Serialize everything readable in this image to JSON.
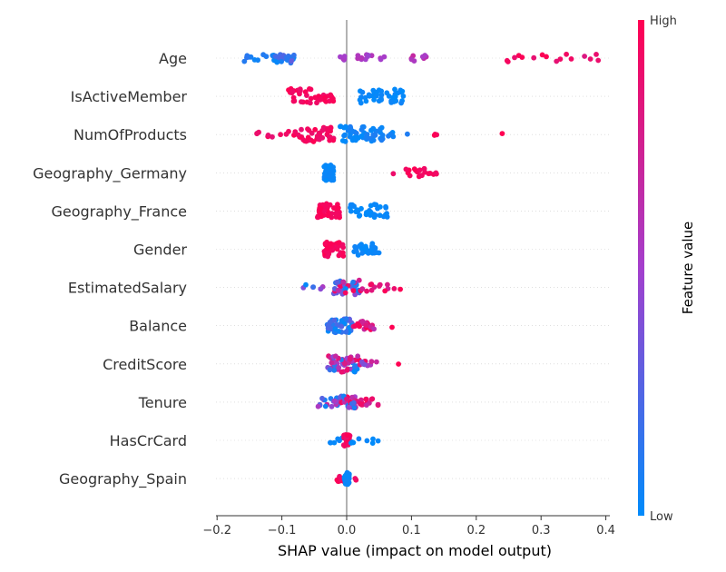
{
  "chart_data": {
    "type": "scatter",
    "subtype": "shap-beeswarm",
    "xlabel": "SHAP value (impact on model output)",
    "xlim": [
      -0.2,
      0.42
    ],
    "xticks": [
      "−0.2",
      "−0.1",
      "0.0",
      "0.1",
      "0.2",
      "0.3",
      "0.4"
    ],
    "xtick_values": [
      -0.2,
      -0.1,
      0.0,
      0.1,
      0.2,
      0.3,
      0.4
    ],
    "colorbar": {
      "label": "Feature value",
      "high": "High",
      "low": "Low",
      "low_color": "#008bfb",
      "mid_color": "#a43fcd",
      "high_color": "#ff0052"
    },
    "features": [
      {
        "name": "Age",
        "segments": [
          {
            "from": -0.17,
            "to": -0.1,
            "n": 18,
            "c": [
              0.0,
              0.15
            ]
          },
          {
            "from": -0.11,
            "to": -0.08,
            "n": 22,
            "c": [
              0.0,
              0.3
            ]
          },
          {
            "from": -0.01,
            "to": 0.0,
            "n": 5,
            "c": [
              0.45,
              0.55
            ]
          },
          {
            "from": 0.01,
            "to": 0.07,
            "n": 12,
            "c": [
              0.45,
              0.6
            ]
          },
          {
            "from": 0.09,
            "to": 0.13,
            "n": 8,
            "c": [
              0.5,
              0.7
            ]
          },
          {
            "from": 0.19,
            "to": 0.39,
            "n": 16,
            "c": [
              0.8,
              1.0
            ]
          }
        ]
      },
      {
        "name": "IsActiveMember",
        "segments": [
          {
            "from": -0.09,
            "to": -0.02,
            "n": 45,
            "c": [
              0.9,
              1.0
            ]
          },
          {
            "from": 0.02,
            "to": 0.09,
            "n": 40,
            "c": [
              0.0,
              0.05
            ]
          }
        ]
      },
      {
        "name": "NumOfProducts",
        "segments": [
          {
            "from": -0.14,
            "to": -0.08,
            "n": 10,
            "c": [
              0.85,
              1.0
            ]
          },
          {
            "from": -0.08,
            "to": -0.02,
            "n": 40,
            "c": [
              0.85,
              1.0
            ]
          },
          {
            "from": -0.01,
            "to": 0.06,
            "n": 50,
            "c": [
              0.0,
              0.1
            ]
          },
          {
            "from": 0.06,
            "to": 0.1,
            "n": 5,
            "c": [
              0.0,
              0.1
            ]
          },
          {
            "from": 0.135,
            "to": 0.145,
            "n": 3,
            "c": [
              0.9,
              1.0
            ]
          },
          {
            "from": 0.24,
            "to": 0.24,
            "n": 1,
            "c": [
              1.0,
              1.0
            ]
          }
        ]
      },
      {
        "name": "Geography_Germany",
        "segments": [
          {
            "from": -0.035,
            "to": -0.02,
            "n": 45,
            "c": [
              0.0,
              0.05
            ]
          },
          {
            "from": 0.07,
            "to": 0.145,
            "n": 20,
            "c": [
              0.9,
              1.0
            ]
          }
        ]
      },
      {
        "name": "Geography_France",
        "segments": [
          {
            "from": -0.045,
            "to": -0.01,
            "n": 40,
            "c": [
              0.9,
              1.0
            ]
          },
          {
            "from": 0.005,
            "to": 0.065,
            "n": 35,
            "c": [
              0.0,
              0.05
            ]
          }
        ]
      },
      {
        "name": "Gender",
        "segments": [
          {
            "from": -0.035,
            "to": -0.005,
            "n": 40,
            "c": [
              0.9,
              1.0
            ]
          },
          {
            "from": 0.01,
            "to": 0.05,
            "n": 30,
            "c": [
              0.0,
              0.05
            ]
          }
        ]
      },
      {
        "name": "EstimatedSalary",
        "segments": [
          {
            "from": -0.08,
            "to": -0.03,
            "n": 6,
            "c": [
              0.0,
              0.6
            ]
          },
          {
            "from": -0.02,
            "to": 0.02,
            "n": 40,
            "c": [
              0.0,
              1.0
            ]
          },
          {
            "from": 0.02,
            "to": 0.085,
            "n": 14,
            "c": [
              0.7,
              1.0
            ]
          }
        ]
      },
      {
        "name": "Balance",
        "segments": [
          {
            "from": -0.03,
            "to": 0.01,
            "n": 40,
            "c": [
              0.0,
              0.3
            ]
          },
          {
            "from": 0.01,
            "to": 0.045,
            "n": 20,
            "c": [
              0.6,
              1.0
            ]
          },
          {
            "from": 0.07,
            "to": 0.07,
            "n": 1,
            "c": [
              1.0,
              1.0
            ]
          }
        ]
      },
      {
        "name": "CreditScore",
        "segments": [
          {
            "from": -0.03,
            "to": 0.02,
            "n": 55,
            "c": [
              0.0,
              1.0
            ]
          },
          {
            "from": 0.02,
            "to": 0.05,
            "n": 10,
            "c": [
              0.3,
              1.0
            ]
          },
          {
            "from": 0.08,
            "to": 0.08,
            "n": 1,
            "c": [
              1.0,
              1.0
            ]
          }
        ]
      },
      {
        "name": "Tenure",
        "segments": [
          {
            "from": -0.045,
            "to": -0.005,
            "n": 20,
            "c": [
              0.0,
              0.7
            ]
          },
          {
            "from": -0.01,
            "to": 0.02,
            "n": 30,
            "c": [
              0.0,
              1.0
            ]
          },
          {
            "from": 0.02,
            "to": 0.05,
            "n": 14,
            "c": [
              0.6,
              1.0
            ]
          }
        ]
      },
      {
        "name": "HasCrCard",
        "segments": [
          {
            "from": -0.03,
            "to": -0.005,
            "n": 6,
            "c": [
              0.0,
              0.05
            ]
          },
          {
            "from": -0.005,
            "to": 0.005,
            "n": 30,
            "c": [
              0.85,
              1.0
            ]
          },
          {
            "from": 0.005,
            "to": 0.05,
            "n": 8,
            "c": [
              0.0,
              0.05
            ]
          }
        ]
      },
      {
        "name": "Geography_Spain",
        "segments": [
          {
            "from": -0.015,
            "to": -0.003,
            "n": 8,
            "c": [
              0.9,
              1.0
            ]
          },
          {
            "from": -0.004,
            "to": 0.004,
            "n": 30,
            "c": [
              0.0,
              0.05
            ]
          },
          {
            "from": 0.01,
            "to": 0.015,
            "n": 2,
            "c": [
              0.9,
              1.0
            ]
          }
        ]
      }
    ]
  }
}
